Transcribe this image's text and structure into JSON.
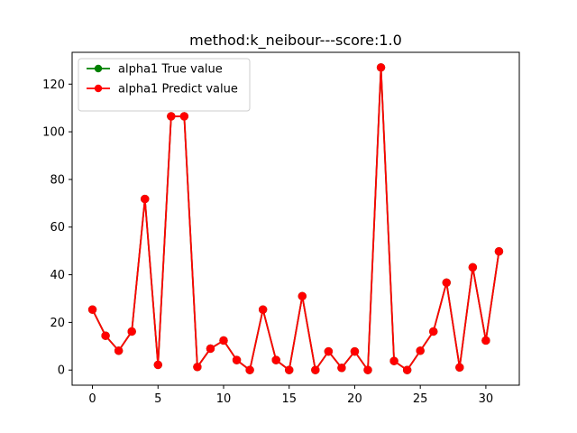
{
  "chart_data": {
    "type": "line",
    "title": "method:k_neibour---score:1.0",
    "xlabel": "",
    "ylabel": "",
    "x": [
      0,
      1,
      2,
      3,
      4,
      5,
      6,
      7,
      8,
      9,
      10,
      11,
      12,
      13,
      14,
      15,
      16,
      17,
      18,
      19,
      20,
      21,
      22,
      23,
      24,
      25,
      26,
      27,
      28,
      29,
      30,
      31
    ],
    "xlim": [
      -1.55,
      32.55
    ],
    "ylim": [
      -6.35,
      133.35
    ],
    "xticks": [
      0,
      5,
      10,
      15,
      20,
      25,
      30
    ],
    "yticks": [
      0,
      20,
      40,
      60,
      80,
      100,
      120
    ],
    "grid": false,
    "legend": "upper-left",
    "series": [
      {
        "name": "alpha1 True value",
        "color": "#008000",
        "marker": "circle",
        "values": [
          25.4,
          14.4,
          8.1,
          16.2,
          71.8,
          2.2,
          106.5,
          106.5,
          1.3,
          9.0,
          12.4,
          4.2,
          0.0,
          25.4,
          4.2,
          0.0,
          31.0,
          0.0,
          7.8,
          0.9,
          7.8,
          0.0,
          127.0,
          3.8,
          0.0,
          8.1,
          16.2,
          36.7,
          1.1,
          43.1,
          12.4,
          49.8
        ]
      },
      {
        "name": "alpha1 Predict value",
        "color": "#ff0000",
        "marker": "circle",
        "values": [
          25.4,
          14.4,
          8.1,
          16.2,
          71.8,
          2.2,
          106.5,
          106.5,
          1.3,
          9.0,
          12.4,
          4.2,
          0.0,
          25.4,
          4.2,
          0.0,
          31.0,
          0.0,
          7.8,
          0.9,
          7.8,
          0.0,
          127.0,
          3.8,
          0.0,
          8.1,
          16.2,
          36.7,
          1.1,
          43.1,
          12.4,
          49.8
        ]
      }
    ]
  }
}
